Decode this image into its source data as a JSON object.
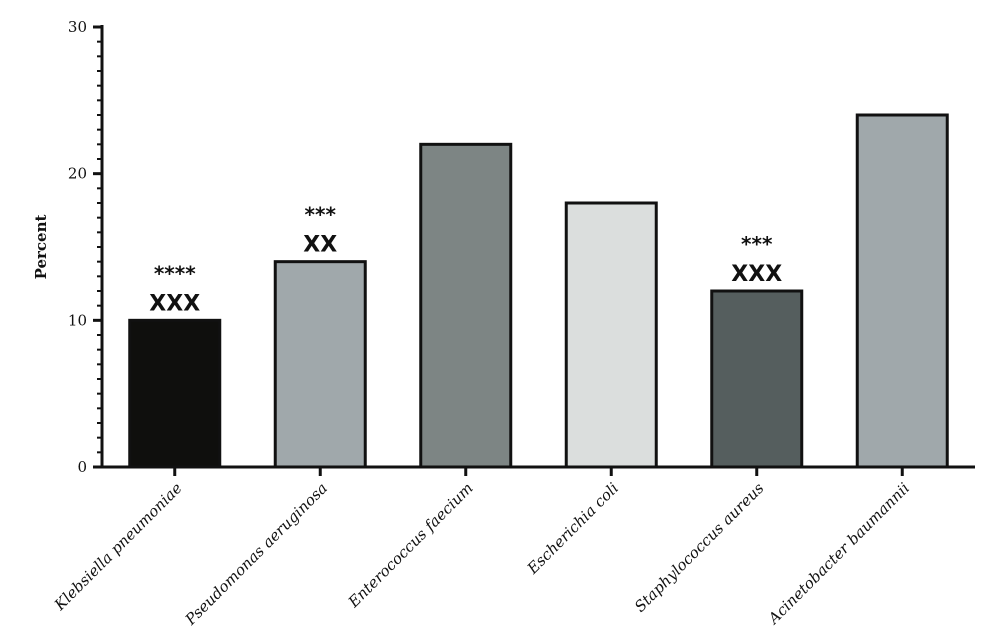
{
  "chart_data": {
    "type": "bar",
    "categories": [
      "Klebsiella pneumoniae",
      "Pseudomonas aeruginosa",
      "Enterococcus faecium",
      "Escherichia coli",
      "Staphylococcus aureus",
      "Acinetobacter baumannii"
    ],
    "values": [
      10,
      14,
      22,
      18,
      12,
      24
    ],
    "colors": [
      "#0f0f0d",
      "#a0a8ab",
      "#7d8584",
      "#dbdedd",
      "#555e5e",
      "#a0a8ab"
    ],
    "significance_stars": [
      "****",
      "***",
      "",
      "",
      "***",
      ""
    ],
    "significance_x": [
      "XXX",
      "XX",
      "",
      "",
      "XXX",
      ""
    ],
    "ylabel": "Percent",
    "xlabel": "",
    "ylim": [
      0,
      30
    ],
    "yticks": [
      0,
      10,
      20,
      30
    ],
    "grid": false,
    "legend": "none"
  }
}
